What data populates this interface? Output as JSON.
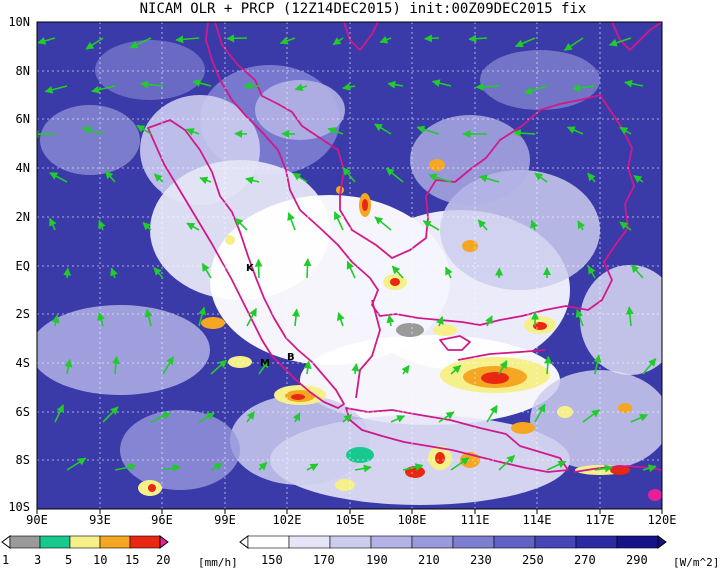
{
  "title": "NICAM OLR + PRCP (12Z14DEC2015) init:00Z09DEC2015 fix",
  "lat_labels": [
    "10N",
    "8N",
    "6N",
    "4N",
    "2N",
    "EQ",
    "2S",
    "4S",
    "6S",
    "8S",
    "10S"
  ],
  "lon_labels": [
    "90E",
    "93E",
    "96E",
    "99E",
    "102E",
    "105E",
    "108E",
    "111E",
    "114E",
    "117E",
    "120E"
  ],
  "location_markers": [
    "K",
    "M",
    "B"
  ],
  "precip_colorbar": {
    "ticks": [
      "1",
      "3",
      "5",
      "10",
      "15",
      "20"
    ],
    "unit": "[mm/h]",
    "colors": [
      "#9a9a9a",
      "#17c98f",
      "#f6f08a",
      "#f5a623",
      "#e92812",
      "#e81f9a"
    ]
  },
  "olr_colorbar": {
    "ticks": [
      "150",
      "170",
      "190",
      "210",
      "230",
      "250",
      "270",
      "290"
    ],
    "unit": "[W/m^2]",
    "colors": [
      "#ffffff",
      "#e5e5f7",
      "#ccccef",
      "#b2b2e6",
      "#9999dd",
      "#7f7fd2",
      "#6262c5",
      "#4646b6",
      "#2a2aa3",
      "#141488"
    ]
  },
  "colors": {
    "coastline": "#d01a8a",
    "wind_vector": "#1fcc2a",
    "grid": "#ffffff"
  }
}
